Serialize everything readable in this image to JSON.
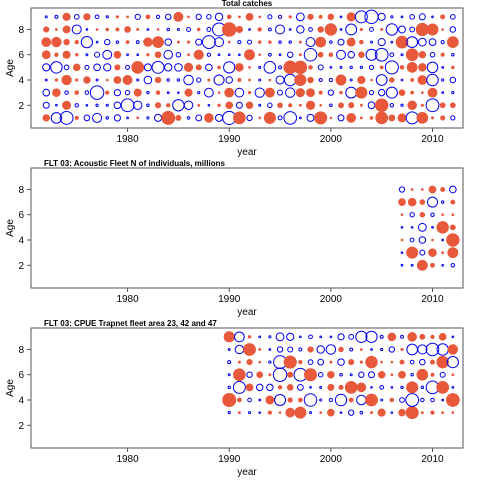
{
  "chart_data": [
    {
      "type": "scatter",
      "title": "Total catches",
      "xlabel": "year",
      "ylabel": "Age",
      "xlim": [
        1970.5,
        2013
      ],
      "ylim": [
        0.2,
        9.7
      ],
      "xticks": [
        1980,
        1990,
        2000,
        2010
      ],
      "yticks": [
        2,
        4,
        6,
        8
      ],
      "series": {
        "positive": "#e8593c",
        "negative": "#0000ee"
      },
      "grid": false,
      "years": [
        1972,
        2012
      ],
      "ages": [
        1,
        9
      ]
    },
    {
      "type": "scatter",
      "title": "FLT 03: Acoustic Fleet   N of individuals, millions",
      "xlabel": "year",
      "ylabel": "Age",
      "xlim": [
        1970.5,
        2013
      ],
      "ylim": [
        0.2,
        9.7
      ],
      "xticks": [
        1980,
        1990,
        2000,
        2010
      ],
      "yticks": [
        2,
        4,
        6,
        8
      ],
      "series": {
        "positive": "#e8593c",
        "negative": "#0000ee"
      },
      "grid": false,
      "years": [
        2007,
        2012
      ],
      "ages": [
        2,
        8
      ]
    },
    {
      "type": "scatter",
      "title": "FLT 03: CPUE Trapnet fleet area 23, 42 and 47",
      "xlabel": "year",
      "ylabel": "Age",
      "xlim": [
        1970.5,
        2013
      ],
      "ylim": [
        0.2,
        9.7
      ],
      "xticks": [
        1980,
        1990,
        2000,
        2010
      ],
      "yticks": [
        2,
        4,
        6,
        8
      ],
      "series": {
        "positive": "#e8593c",
        "negative": "#0000ee"
      },
      "grid": false,
      "years": [
        1990,
        2012
      ],
      "ages": [
        3,
        9
      ]
    }
  ]
}
